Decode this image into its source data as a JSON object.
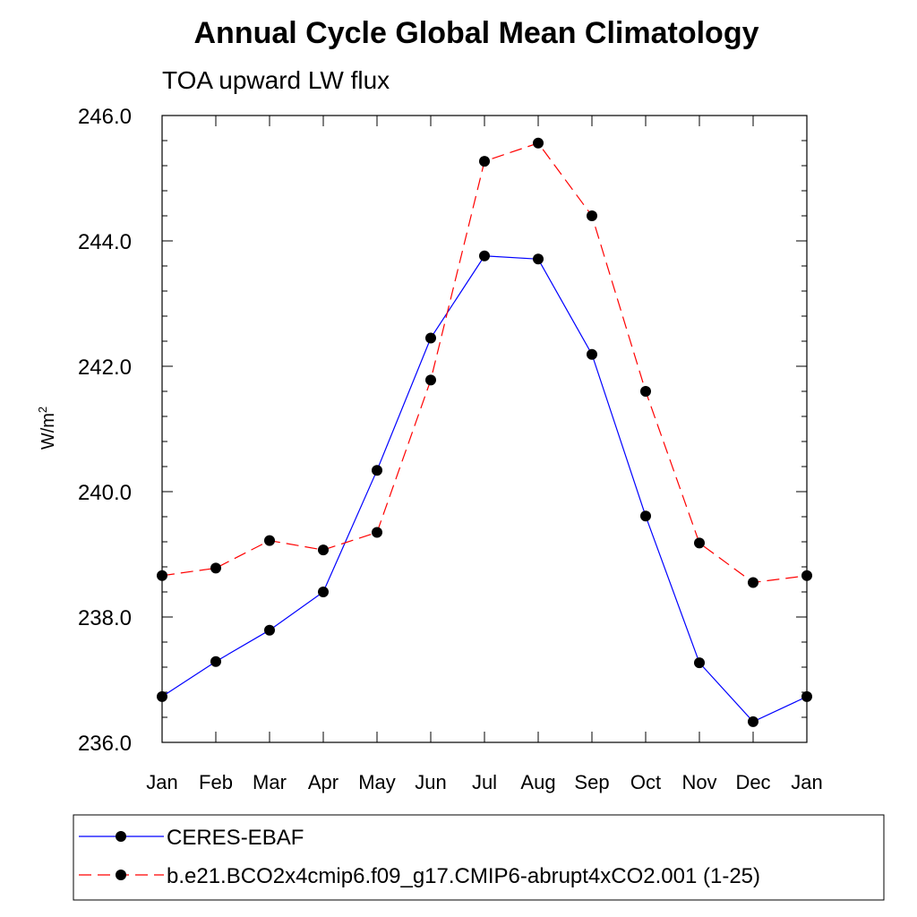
{
  "chart_data": {
    "type": "line",
    "title": "Annual Cycle Global Mean Climatology",
    "subtitle": "TOA upward LW flux",
    "ylabel": "W/m",
    "ylabel_superscript": "2",
    "xlabel": "",
    "categories": [
      "Jan",
      "Feb",
      "Mar",
      "Apr",
      "May",
      "Jun",
      "Jul",
      "Aug",
      "Sep",
      "Oct",
      "Nov",
      "Dec",
      "Jan"
    ],
    "ylim": [
      236.0,
      246.0
    ],
    "yticks": [
      "236.0",
      "238.0",
      "240.0",
      "242.0",
      "244.0",
      "246.0"
    ],
    "grid": false,
    "legend_position": "bottom",
    "series": [
      {
        "name": "CERES-EBAF",
        "color": "#0000ff",
        "dash": "solid",
        "marker": "filled-circle",
        "values": [
          236.73,
          237.29,
          237.79,
          238.4,
          240.34,
          242.45,
          243.76,
          243.71,
          242.19,
          239.61,
          237.27,
          236.33,
          236.73
        ]
      },
      {
        "name": "b.e21.BCO2x4cmip6.f09_g17.CMIP6-abrupt4xCO2.001 (1-25)",
        "color": "#ff0000",
        "dash": "dashed",
        "marker": "filled-circle",
        "values": [
          238.66,
          238.78,
          239.22,
          239.07,
          239.35,
          241.78,
          245.27,
          245.56,
          244.4,
          241.6,
          239.18,
          238.55,
          238.66
        ]
      }
    ]
  }
}
